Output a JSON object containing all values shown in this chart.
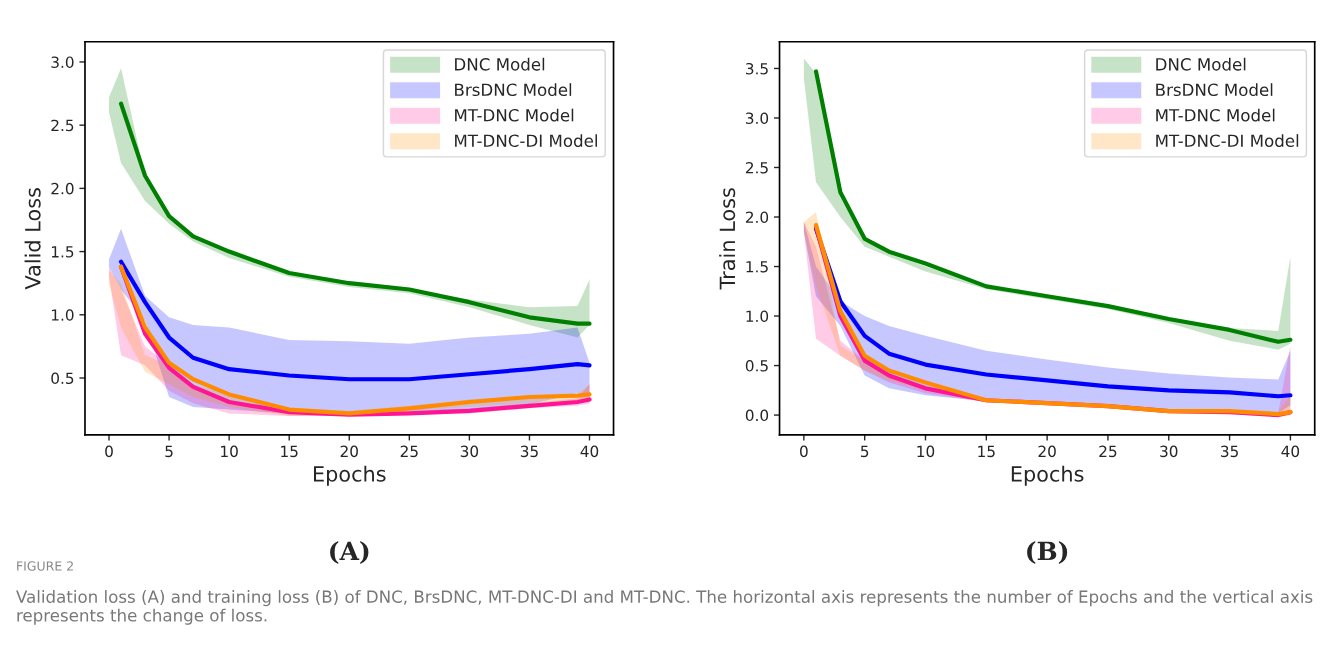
{
  "chart_data": [
    {
      "type": "line",
      "xlabel": "Epochs",
      "ylabel": "Valid Loss",
      "x": [
        0,
        1,
        3,
        5,
        7,
        10,
        15,
        20,
        25,
        30,
        35,
        39,
        40
      ],
      "xlim": [
        -2,
        42
      ],
      "ylim": [
        0.05,
        3.16
      ],
      "xticks": [
        0,
        5,
        10,
        15,
        20,
        25,
        30,
        35,
        40
      ],
      "yticks": [
        {
          "value": 0.5,
          "label": "0.5"
        },
        {
          "value": 1.0,
          "label": "1.0"
        },
        {
          "value": 1.5,
          "label": "1.5"
        },
        {
          "value": 2.0,
          "label": "2.0"
        },
        {
          "value": 2.5,
          "label": "2.5"
        },
        {
          "value": 3.0,
          "label": "3.0"
        }
      ],
      "legend": "top right",
      "annotations": [
        "(A)",
        "FIGURE 2",
        "Validation loss (A) and training loss (B) of DNC, BrsDNC, MT-DNC-DI and MT-DNC. The horizontal axis represents the number of Epochs and the vertical axis represents the change of loss."
      ],
      "series": [
        {
          "name": "DNC Model",
          "color": "#008000",
          "values": [
            null,
            2.67,
            2.1,
            1.78,
            1.62,
            1.5,
            1.33,
            1.25,
            1.2,
            1.1,
            0.98,
            0.93,
            0.93
          ],
          "upper": [
            2.72,
            2.95,
            2.1,
            1.78,
            1.63,
            1.5,
            1.33,
            1.26,
            1.2,
            1.12,
            1.06,
            1.07,
            1.28
          ],
          "lower": [
            2.6,
            2.2,
            1.9,
            1.72,
            1.58,
            1.45,
            1.3,
            1.22,
            1.17,
            1.06,
            0.92,
            0.82,
            0.92
          ]
        },
        {
          "name": "BrsDNC Model",
          "color": "#0000ff",
          "values": [
            null,
            1.42,
            1.1,
            0.82,
            0.66,
            0.57,
            0.52,
            0.49,
            0.49,
            0.53,
            0.57,
            0.61,
            0.6
          ],
          "upper": [
            1.44,
            1.68,
            1.15,
            0.98,
            0.92,
            0.9,
            0.8,
            0.79,
            0.77,
            0.82,
            0.85,
            0.9,
            0.62
          ],
          "lower": [
            1.38,
            1.2,
            0.95,
            0.35,
            0.27,
            0.25,
            0.22,
            0.22,
            0.24,
            0.24,
            0.29,
            0.38,
            0.35
          ]
        },
        {
          "name": "MT-DNC Model",
          "color": "#ff1493",
          "values": [
            null,
            1.38,
            0.85,
            0.58,
            0.43,
            0.31,
            0.23,
            0.21,
            0.22,
            0.24,
            0.28,
            0.31,
            0.33
          ],
          "upper": [
            1.38,
            1.2,
            0.75,
            0.6,
            0.45,
            0.32,
            0.24,
            0.22,
            0.24,
            0.26,
            0.3,
            0.34,
            0.45
          ],
          "lower": [
            1.3,
            0.68,
            0.6,
            0.4,
            0.3,
            0.22,
            0.2,
            0.2,
            0.21,
            0.22,
            0.26,
            0.28,
            0.3
          ]
        },
        {
          "name": "MT-DNC-DI Model",
          "color": "#ff8c00",
          "values": [
            null,
            1.38,
            0.9,
            0.62,
            0.49,
            0.37,
            0.25,
            0.22,
            0.26,
            0.31,
            0.35,
            0.36,
            0.37
          ],
          "upper": [
            1.35,
            1.25,
            0.68,
            0.6,
            0.45,
            0.37,
            0.26,
            0.24,
            0.28,
            0.33,
            0.36,
            0.37,
            0.45
          ],
          "lower": [
            1.25,
            0.9,
            0.55,
            0.45,
            0.35,
            0.27,
            0.2,
            0.2,
            0.24,
            0.27,
            0.3,
            0.32,
            0.3
          ]
        }
      ]
    },
    {
      "type": "line",
      "xlabel": "Epochs",
      "ylabel": "Train Loss",
      "x": [
        0,
        1,
        3,
        5,
        7,
        10,
        15,
        20,
        25,
        30,
        35,
        39,
        40
      ],
      "xlim": [
        -2,
        42
      ],
      "ylim": [
        -0.2,
        3.77
      ],
      "xticks": [
        0,
        5,
        10,
        15,
        20,
        25,
        30,
        35,
        40
      ],
      "yticks": [
        {
          "value": 0.0,
          "label": "0.0"
        },
        {
          "value": 0.5,
          "label": "0.5"
        },
        {
          "value": 1.0,
          "label": "1.0"
        },
        {
          "value": 1.5,
          "label": "1.5"
        },
        {
          "value": 2.0,
          "label": "2.0"
        },
        {
          "value": 2.5,
          "label": "2.5"
        },
        {
          "value": 3.0,
          "label": "3.0"
        },
        {
          "value": 3.5,
          "label": "3.5"
        }
      ],
      "legend": "top right",
      "annotations": [
        "(B)"
      ],
      "series": [
        {
          "name": "DNC Model",
          "color": "#008000",
          "values": [
            null,
            3.47,
            2.25,
            1.78,
            1.65,
            1.53,
            1.3,
            1.2,
            1.1,
            0.97,
            0.86,
            0.74,
            0.76
          ],
          "upper": [
            3.6,
            3.45,
            2.2,
            1.75,
            1.65,
            1.5,
            1.3,
            1.2,
            1.12,
            0.98,
            0.88,
            0.85,
            1.6
          ],
          "lower": [
            3.4,
            2.35,
            2.0,
            1.7,
            1.6,
            1.45,
            1.27,
            1.17,
            1.07,
            0.93,
            0.75,
            0.66,
            0.72
          ]
        },
        {
          "name": "BrsDNC Model",
          "color": "#0000ff",
          "values": [
            null,
            1.88,
            1.15,
            0.8,
            0.62,
            0.51,
            0.41,
            0.35,
            0.29,
            0.25,
            0.23,
            0.19,
            0.2
          ],
          "upper": [
            1.95,
            1.5,
            1.15,
            1.0,
            0.9,
            0.8,
            0.65,
            0.56,
            0.48,
            0.42,
            0.38,
            0.36,
            0.65
          ],
          "lower": [
            1.85,
            1.2,
            0.9,
            0.4,
            0.27,
            0.2,
            0.14,
            0.12,
            0.09,
            0.05,
            0.03,
            0.02,
            0.1
          ]
        },
        {
          "name": "MT-DNC Model",
          "color": "#ff1493",
          "values": [
            null,
            1.9,
            1.0,
            0.55,
            0.4,
            0.27,
            0.15,
            0.12,
            0.09,
            0.04,
            0.03,
            0.0,
            0.03
          ],
          "upper": [
            1.95,
            1.7,
            0.75,
            0.55,
            0.4,
            0.28,
            0.16,
            0.13,
            0.1,
            0.05,
            0.04,
            0.02,
            0.7
          ],
          "lower": [
            1.85,
            0.77,
            0.6,
            0.45,
            0.33,
            0.22,
            0.13,
            0.11,
            0.08,
            0.02,
            0.01,
            -0.02,
            0.0
          ]
        },
        {
          "name": "MT-DNC-DI Model",
          "color": "#ff8c00",
          "values": [
            null,
            1.92,
            1.05,
            0.6,
            0.45,
            0.33,
            0.15,
            0.12,
            0.09,
            0.04,
            0.04,
            0.01,
            0.03
          ],
          "upper": [
            1.95,
            2.05,
            0.7,
            0.55,
            0.42,
            0.3,
            0.16,
            0.13,
            0.1,
            0.05,
            0.05,
            0.03,
            0.2
          ],
          "lower": [
            1.85,
            1.3,
            0.6,
            0.45,
            0.35,
            0.25,
            0.13,
            0.11,
            0.08,
            0.02,
            0.02,
            -0.01,
            0.0
          ]
        }
      ]
    }
  ]
}
